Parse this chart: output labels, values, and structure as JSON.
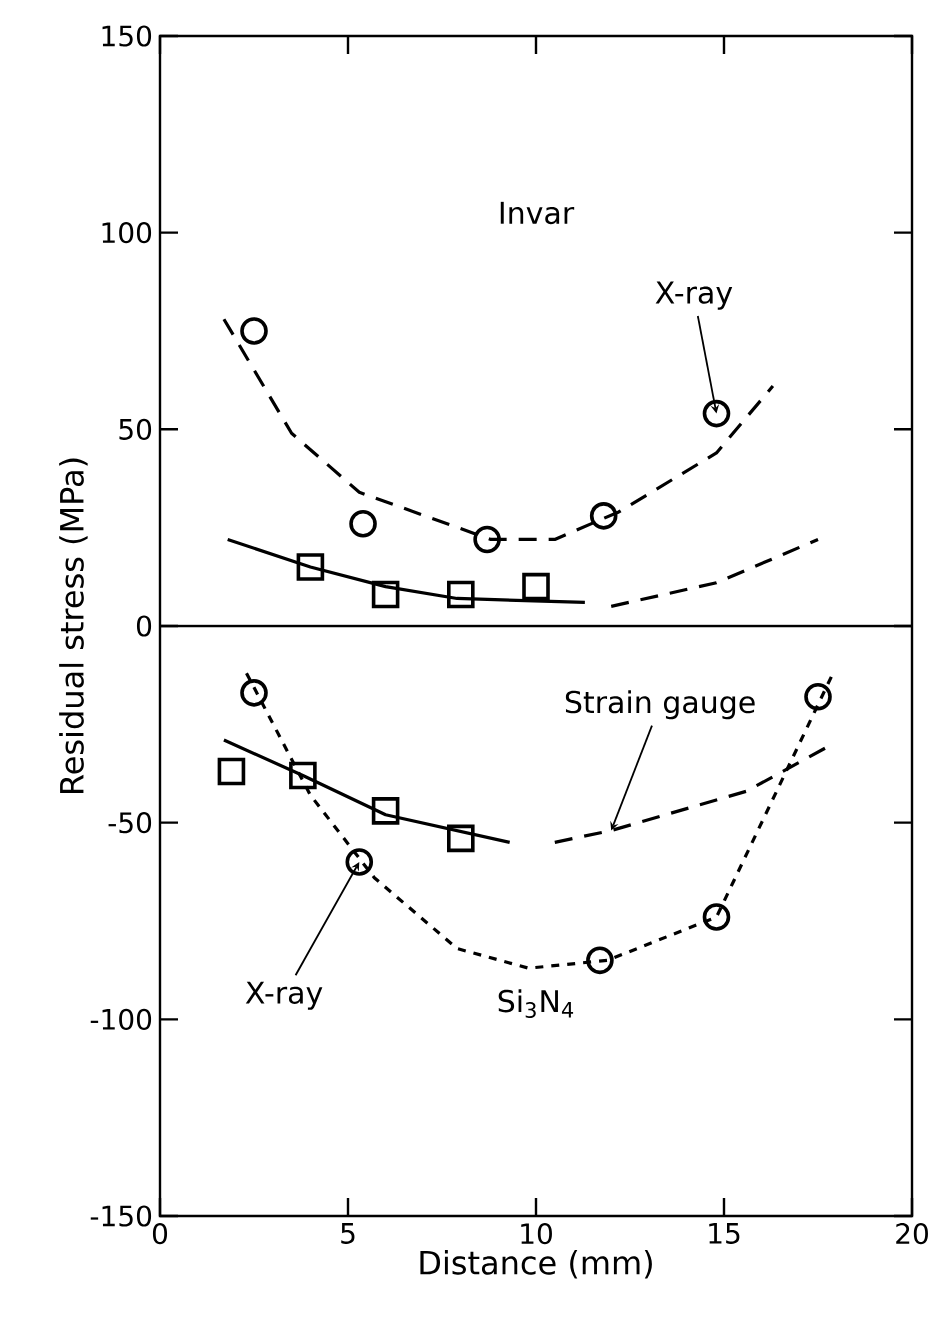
{
  "chart_data": {
    "type": "scatter",
    "xlabel": "Distance (mm)",
    "ylabel": "Residual stress (MPa)",
    "xlim": [
      0,
      20
    ],
    "ylim": [
      -150,
      150
    ],
    "xticks": [
      0,
      5,
      10,
      15,
      20
    ],
    "yticks": [
      -150,
      -100,
      -50,
      0,
      50,
      100,
      150
    ],
    "grid": false,
    "ref_lines": [
      {
        "axis": "y",
        "value": 0,
        "color": "#000000"
      }
    ],
    "annotations": [
      "Invar",
      "Si$_{3}$N$_{4}$",
      {
        "text": "X-ray",
        "x": 14.8,
        "y": 54
      },
      {
        "text": "Strain gauge",
        "x": 12.0,
        "y": -52
      },
      {
        "text": "X-ray",
        "x": 5.3,
        "y": -60
      }
    ],
    "series": [
      {
        "marker": "circle",
        "color": "#000000",
        "x": [
          2.5,
          5.4,
          8.7,
          11.8,
          14.8
        ],
        "values": [
          75,
          26,
          22,
          28,
          54
        ]
      },
      {
        "type": "line",
        "marker": "none",
        "line_style": "dashed",
        "color": "#000000",
        "x": [
          1.7,
          3.5,
          5.3,
          8.8,
          10.5,
          12.2,
          14.8,
          16.3
        ],
        "values": [
          78,
          49,
          34,
          22,
          22,
          29,
          44,
          61
        ]
      },
      {
        "marker": "square",
        "color": "#000000",
        "x": [
          4.0,
          6.0,
          8.0,
          10.0
        ],
        "values": [
          15,
          8,
          8,
          10
        ]
      },
      {
        "type": "line",
        "marker": "none",
        "line_style": "solid",
        "color": "#000000",
        "x": [
          1.8,
          4.0,
          6.0,
          7.9,
          11.3
        ],
        "values": [
          22,
          15,
          10,
          7,
          6
        ]
      },
      {
        "type": "line",
        "marker": "none",
        "line_style": "dashed",
        "color": "#000000",
        "x": [
          12.0,
          14.8,
          17.5
        ],
        "values": [
          5,
          11,
          22
        ]
      },
      {
        "marker": "circle",
        "color": "#000000",
        "x": [
          2.5,
          5.3,
          11.7,
          14.8,
          17.5
        ],
        "values": [
          -17,
          -60,
          -85,
          -74,
          -18
        ]
      },
      {
        "type": "line",
        "marker": "none",
        "line_style": "dotted",
        "color": "#000000",
        "x": [
          2.3,
          4.0,
          5.7,
          7.9,
          9.8,
          11.9,
          14.8,
          16.6,
          17.9
        ],
        "values": [
          -12,
          -43,
          -64,
          -82,
          -87,
          -85,
          -74,
          -38,
          -12
        ]
      },
      {
        "marker": "square",
        "color": "#000000",
        "x": [
          1.9,
          3.8,
          6.0,
          8.0
        ],
        "values": [
          -37,
          -38,
          -47,
          -54
        ]
      },
      {
        "type": "line",
        "marker": "none",
        "line_style": "solid",
        "color": "#000000",
        "x": [
          1.7,
          3.8,
          6.0,
          9.3
        ],
        "values": [
          -29,
          -38,
          -48,
          -55
        ]
      },
      {
        "type": "line",
        "marker": "none",
        "line_style": "dashed",
        "color": "#000000",
        "x": [
          10.5,
          12.0,
          15.6,
          17.7
        ],
        "values": [
          -55,
          -52,
          -42,
          -31
        ]
      }
    ]
  }
}
